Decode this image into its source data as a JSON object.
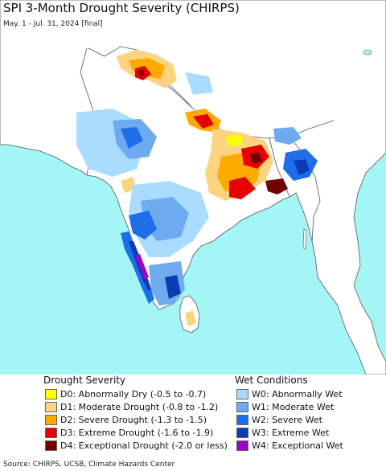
{
  "header": {
    "title": "SPI 3-Month Drought Severity (CHIRPS)",
    "subtitle": "May. 1 - Jul. 31, 2024 [final]"
  },
  "map": {
    "ocean_color": "#a4f5f5",
    "land_color": "#ffffff",
    "border_color": "#555555"
  },
  "legend": {
    "drought_title": "Drought Severity",
    "wet_title": "Wet Conditions",
    "drought_items": [
      {
        "code": "D0",
        "label": "D0: Abnormally Dry (-0.5 to -0.7)",
        "color": "#ffff00"
      },
      {
        "code": "D1",
        "label": "D1: Moderate Drought (-0.8 to -1.2)",
        "color": "#fcd37f"
      },
      {
        "code": "D2",
        "label": "D2: Severe Drought (-1.3 to -1.5)",
        "color": "#ffaa00"
      },
      {
        "code": "D3",
        "label": "D3: Extreme Drought (-1.6 to -1.9)",
        "color": "#e60000"
      },
      {
        "code": "D4",
        "label": "D4: Exceptional Drought (-2.0 or less)",
        "color": "#730000"
      }
    ],
    "wet_items": [
      {
        "code": "W0",
        "label": "W0: Abnormally Wet",
        "color": "#aadcff"
      },
      {
        "code": "W1",
        "label": "W1: Moderate Wet",
        "color": "#6eaaf0"
      },
      {
        "code": "W2",
        "label": "W2: Severe Wet",
        "color": "#1e6eeb"
      },
      {
        "code": "W3",
        "label": "W3: Extreme Wet",
        "color": "#0a3cb4"
      },
      {
        "code": "W4",
        "label": "W4: Exceptional Wet",
        "color": "#a000c8"
      }
    ]
  },
  "footer": {
    "source": "Source: CHIRPS, UCSB, Climate Hazards Center"
  }
}
